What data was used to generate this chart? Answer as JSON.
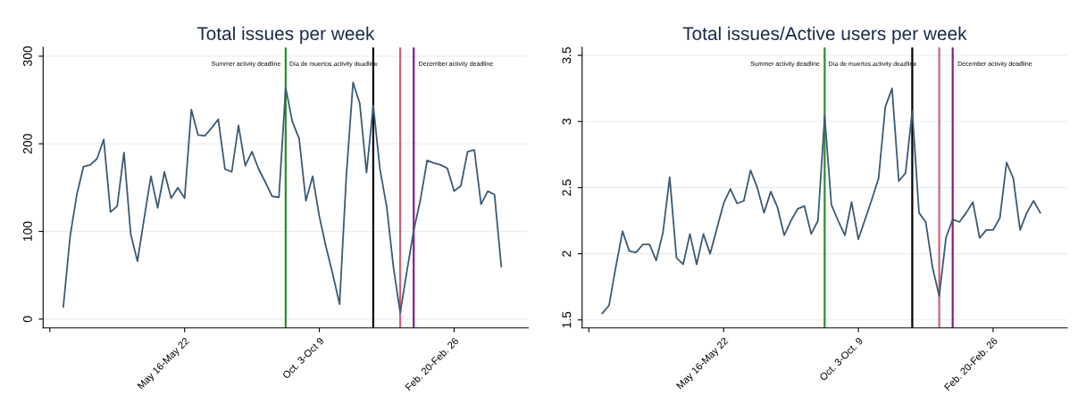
{
  "chart_data": [
    {
      "type": "line",
      "title": "Total issues per week",
      "x": [
        "2022-01-10",
        "2022-01-17",
        "2022-01-24",
        "2022-01-31",
        "2022-02-07",
        "2022-02-14",
        "2022-02-21",
        "2022-02-28",
        "2022-03-07",
        "2022-03-14",
        "2022-03-21",
        "2022-03-28",
        "2022-04-04",
        "2022-04-11",
        "2022-04-18",
        "2022-04-25",
        "2022-05-02",
        "2022-05-09",
        "2022-05-16",
        "2022-05-23",
        "2022-05-30",
        "2022-06-06",
        "2022-06-13",
        "2022-06-20",
        "2022-06-27",
        "2022-07-04",
        "2022-07-11",
        "2022-07-18",
        "2022-07-25",
        "2022-08-01",
        "2022-08-08",
        "2022-08-15",
        "2022-08-22",
        "2022-08-29",
        "2022-09-05",
        "2022-09-12",
        "2022-09-19",
        "2022-09-26",
        "2022-10-03",
        "2022-10-10",
        "2022-10-17",
        "2022-10-24",
        "2022-10-31",
        "2022-11-07",
        "2022-11-14",
        "2022-11-21",
        "2022-11-28",
        "2022-12-05",
        "2022-12-12",
        "2022-12-19",
        "2022-12-26",
        "2023-01-02",
        "2023-01-09",
        "2023-01-16",
        "2023-01-23",
        "2023-01-30",
        "2023-02-06",
        "2023-02-13",
        "2023-02-20",
        "2023-02-27",
        "2023-03-06",
        "2023-03-13",
        "2023-03-20",
        "2023-03-27",
        "2023-04-03",
        "2023-04-10"
      ],
      "series": [
        {
          "color": "#3d5a74",
          "values": [
            14,
            94,
            142,
            174,
            176,
            183,
            205,
            122,
            129,
            190,
            97,
            66,
            115,
            163,
            127,
            168,
            138,
            150,
            138,
            239,
            210,
            209,
            218,
            228,
            171,
            168,
            221,
            175,
            191,
            171,
            156,
            140,
            139,
            264,
            225,
            206,
            135,
            163,
            117,
            82,
            51,
            17,
            163,
            270,
            246,
            167,
            244,
            171,
            128,
            59,
            7,
            55,
            101,
            136,
            181,
            178,
            176,
            172,
            146,
            152,
            191,
            193,
            131,
            146,
            142,
            60
          ]
        }
      ],
      "xlim": [
        "2021-12-20",
        "2023-05-08"
      ],
      "xticks": [
        {
          "value": "2021-12-27",
          "label": null
        },
        {
          "value": "2022-05-16",
          "label": "May 16-May 22"
        },
        {
          "value": "2022-10-03",
          "label": "Oct. 3-Oct 9"
        },
        {
          "value": "2023-02-20",
          "label": "Feb. 20-Feb. 26"
        }
      ],
      "ylim": [
        -10,
        310
      ],
      "yticks": [
        0,
        100,
        200,
        300
      ],
      "grid": "y",
      "ref_lines": [
        {
          "axis": "x",
          "value": "2022-08-29",
          "color": "#2e8b2e",
          "label": "Summer activity deadline"
        },
        {
          "axis": "x",
          "value": "2022-11-28",
          "color": "#000000",
          "label": "Día de muertos activity deadline"
        },
        {
          "axis": "x",
          "value": "2022-12-26",
          "color": "#c8647a"
        },
        {
          "axis": "x",
          "value": "2023-01-09",
          "color": "#8b1a8b",
          "label": "December activity deadline"
        }
      ]
    },
    {
      "type": "line",
      "title": "Total issues/Active users per week",
      "x": [
        "2022-01-10",
        "2022-01-17",
        "2022-01-24",
        "2022-01-31",
        "2022-02-07",
        "2022-02-14",
        "2022-02-21",
        "2022-02-28",
        "2022-03-07",
        "2022-03-14",
        "2022-03-21",
        "2022-03-28",
        "2022-04-04",
        "2022-04-11",
        "2022-04-18",
        "2022-04-25",
        "2022-05-02",
        "2022-05-09",
        "2022-05-16",
        "2022-05-23",
        "2022-05-30",
        "2022-06-06",
        "2022-06-13",
        "2022-06-20",
        "2022-06-27",
        "2022-07-04",
        "2022-07-11",
        "2022-07-18",
        "2022-07-25",
        "2022-08-01",
        "2022-08-08",
        "2022-08-15",
        "2022-08-22",
        "2022-08-29",
        "2022-09-05",
        "2022-09-12",
        "2022-09-19",
        "2022-09-26",
        "2022-10-03",
        "2022-10-10",
        "2022-10-17",
        "2022-10-24",
        "2022-10-31",
        "2022-11-07",
        "2022-11-14",
        "2022-11-21",
        "2022-11-28",
        "2022-12-05",
        "2022-12-12",
        "2022-12-19",
        "2022-12-26",
        "2023-01-02",
        "2023-01-09",
        "2023-01-16",
        "2023-01-23",
        "2023-01-30",
        "2023-02-06",
        "2023-02-13",
        "2023-02-20",
        "2023-02-27",
        "2023-03-06",
        "2023-03-13",
        "2023-03-20",
        "2023-03-27",
        "2023-04-03",
        "2023-04-10"
      ],
      "series": [
        {
          "color": "#3d5a74",
          "values": [
            1.55,
            1.61,
            1.9,
            2.17,
            2.02,
            2.01,
            2.07,
            2.07,
            1.95,
            2.16,
            2.58,
            1.97,
            1.92,
            2.15,
            1.92,
            2.15,
            2.0,
            2.19,
            2.38,
            2.49,
            2.38,
            2.4,
            2.63,
            2.5,
            2.31,
            2.47,
            2.35,
            2.14,
            2.25,
            2.34,
            2.36,
            2.15,
            2.25,
            3.04,
            2.37,
            2.25,
            2.14,
            2.39,
            2.11,
            2.26,
            2.41,
            2.57,
            3.11,
            3.25,
            2.55,
            2.61,
            3.08,
            2.31,
            2.24,
            1.9,
            1.68,
            2.12,
            2.26,
            2.24,
            2.31,
            2.39,
            2.12,
            2.18,
            2.18,
            2.27,
            2.69,
            2.57,
            2.18,
            2.31,
            2.4,
            2.31
          ]
        }
      ],
      "xlim": [
        "2021-12-20",
        "2023-05-08"
      ],
      "xticks": [
        {
          "value": "2021-12-27",
          "label": null
        },
        {
          "value": "2022-05-16",
          "label": "May 16-May 22"
        },
        {
          "value": "2022-10-03",
          "label": "Oct. 3-Oct. 9"
        },
        {
          "value": "2023-02-20",
          "label": "Feb. 20-Feb. 26"
        }
      ],
      "ylim": [
        1.44,
        3.56
      ],
      "yticks": [
        1.5,
        2,
        2.5,
        3,
        3.5
      ],
      "grid": "y",
      "ref_lines": [
        {
          "axis": "x",
          "value": "2022-08-29",
          "color": "#2e8b2e",
          "label": "Summer activity deadline"
        },
        {
          "axis": "x",
          "value": "2022-11-28",
          "color": "#000000",
          "label": "Día de muertos activity deadline"
        },
        {
          "axis": "x",
          "value": "2022-12-26",
          "color": "#c8647a"
        },
        {
          "axis": "x",
          "value": "2023-01-09",
          "color": "#8b1a8b",
          "label": "December activity deadline"
        }
      ]
    }
  ]
}
